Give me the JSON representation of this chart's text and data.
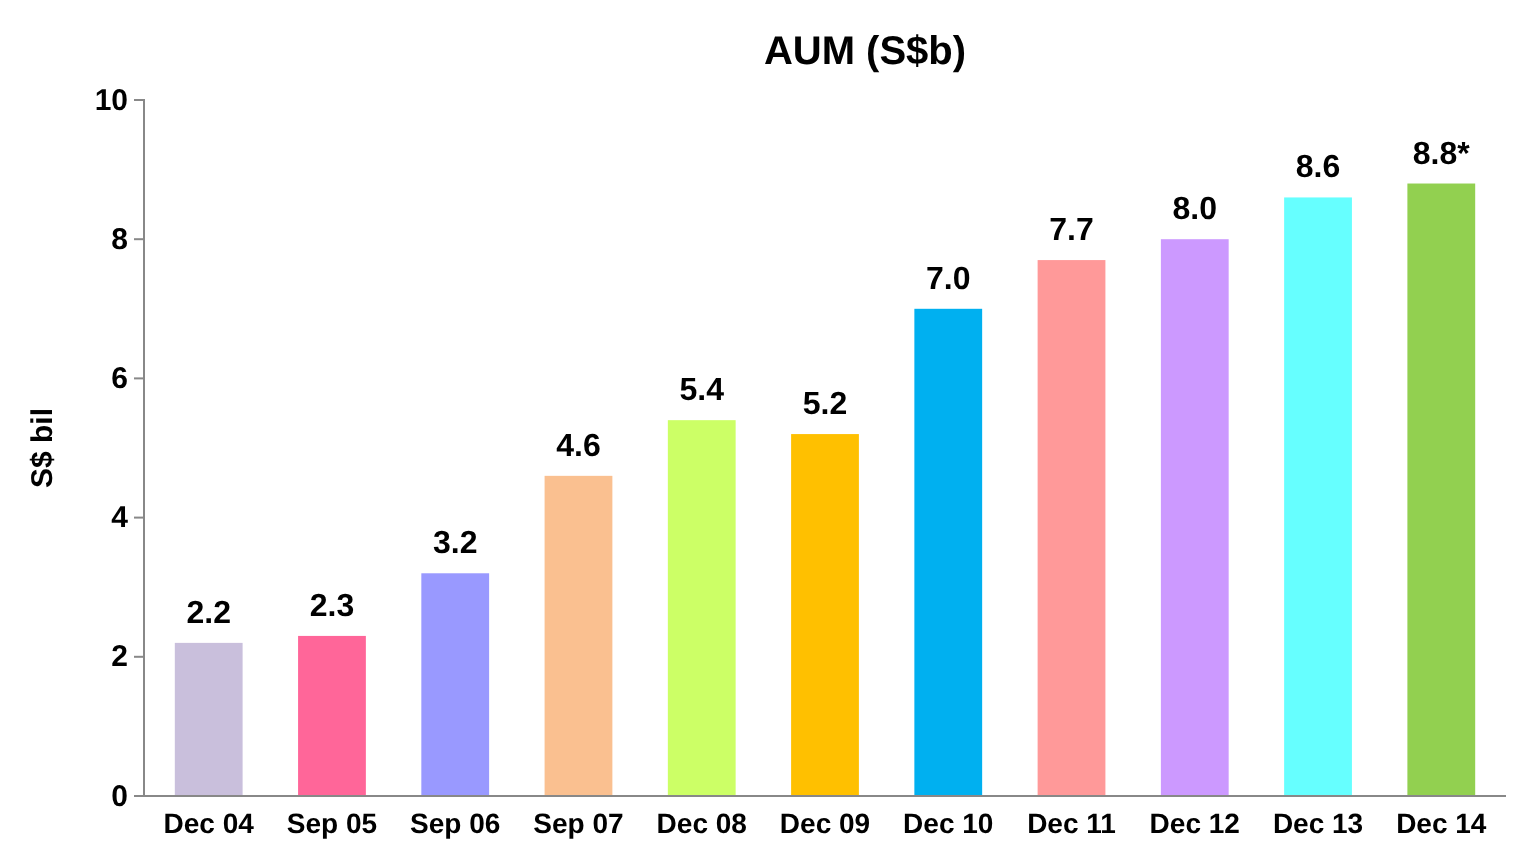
{
  "chart_data": {
    "type": "bar",
    "title": "AUM (S$b)",
    "ylabel": "S$ bil",
    "categories": [
      "Dec 04",
      "Sep 05",
      "Sep 06",
      "Sep 07",
      "Dec 08",
      "Dec 09",
      "Dec 10",
      "Dec 11",
      "Dec 12",
      "Dec 13",
      "Dec 14"
    ],
    "values": [
      2.2,
      2.3,
      3.2,
      4.6,
      5.4,
      5.2,
      7.0,
      7.7,
      8.0,
      8.6,
      8.8
    ],
    "value_labels": [
      "2.2",
      "2.3",
      "3.2",
      "4.6",
      "5.4",
      "5.2",
      "7.0",
      "7.7",
      "8.0",
      "8.6",
      "8.8*"
    ],
    "colors": [
      "#c9bfdc",
      "#ff6699",
      "#9999ff",
      "#fac090",
      "#ccff66",
      "#ffc000",
      "#00b0f0",
      "#ff9999",
      "#cc99ff",
      "#66ffff",
      "#92d050"
    ],
    "ylim": [
      0,
      10
    ],
    "yticks": [
      0,
      2,
      4,
      6,
      8,
      10
    ]
  }
}
